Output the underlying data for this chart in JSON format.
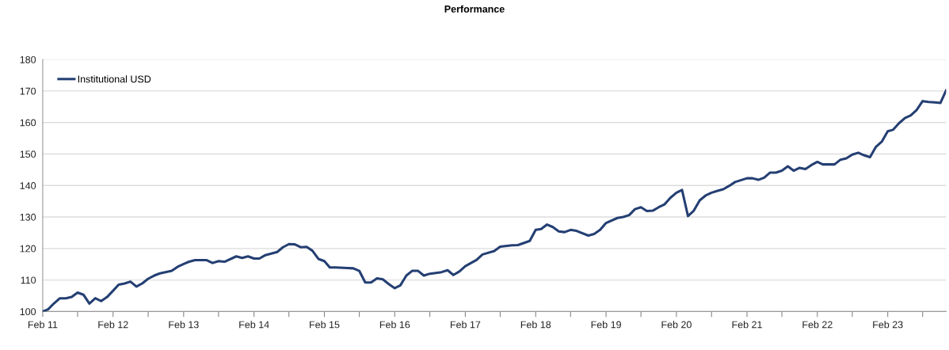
{
  "chart_data": {
    "type": "line",
    "title": "Performance",
    "x": [
      "2011-02",
      "2011-03",
      "2011-04",
      "2011-05",
      "2011-06",
      "2011-07",
      "2011-08",
      "2011-09",
      "2011-10",
      "2011-11",
      "2011-12",
      "2012-01",
      "2012-02",
      "2012-03",
      "2012-04",
      "2012-05",
      "2012-06",
      "2012-07",
      "2012-08",
      "2012-09",
      "2012-10",
      "2012-12",
      "2013-01",
      "2013-02",
      "2013-03",
      "2013-04",
      "2013-06",
      "2013-07",
      "2013-08",
      "2013-09",
      "2013-11",
      "2013-12",
      "2014-01",
      "2014-02",
      "2014-03",
      "2014-04",
      "2014-06",
      "2014-07",
      "2014-08",
      "2014-09",
      "2014-10",
      "2014-11",
      "2014-12",
      "2015-01",
      "2015-02",
      "2015-03",
      "2015-04",
      "2015-06",
      "2015-07",
      "2015-08",
      "2015-09",
      "2015-10",
      "2015-11",
      "2015-12",
      "2016-01",
      "2016-02",
      "2016-03",
      "2016-04",
      "2016-05",
      "2016-06",
      "2016-07",
      "2016-08",
      "2016-10",
      "2016-11",
      "2016-12",
      "2017-01",
      "2017-02",
      "2017-04",
      "2017-05",
      "2017-07",
      "2017-08",
      "2017-10",
      "2017-11",
      "2018-01",
      "2018-02",
      "2018-03",
      "2018-04",
      "2018-05",
      "2018-06",
      "2018-07",
      "2018-08",
      "2018-09",
      "2018-11",
      "2018-12",
      "2019-01",
      "2019-02",
      "2019-04",
      "2019-05",
      "2019-06",
      "2019-07",
      "2019-08",
      "2019-09",
      "2019-10",
      "2019-11",
      "2019-12",
      "2020-01",
      "2020-02",
      "2020-03",
      "2020-04",
      "2020-05",
      "2020-06",
      "2020-07",
      "2020-08",
      "2020-09",
      "2020-10",
      "2020-11",
      "2020-12",
      "2021-02",
      "2021-03",
      "2021-04",
      "2021-05",
      "2021-06",
      "2021-07",
      "2021-08",
      "2021-09",
      "2021-10",
      "2021-11",
      "2021-12",
      "2022-01",
      "2022-02",
      "2022-03",
      "2022-04",
      "2022-05",
      "2022-06",
      "2022-07",
      "2022-08",
      "2022-09",
      "2022-10",
      "2022-11",
      "2022-12",
      "2023-01",
      "2023-02",
      "2023-03",
      "2023-04",
      "2023-05",
      "2023-06",
      "2023-07",
      "2023-08",
      "2023-09",
      "2023-10",
      "2023-11",
      "2023-12"
    ],
    "series": [
      {
        "name": "Institutional USD",
        "color": "#243f73",
        "values": [
          100,
          100.7,
          102.6,
          104.2,
          104.2,
          104.6,
          106.0,
          105.3,
          102.5,
          104.2,
          103.3,
          104.6,
          106.6,
          108.5,
          108.9,
          109.5,
          107.9,
          108.9,
          110.4,
          111.4,
          112.1,
          112.9,
          114.2,
          115.1,
          115.8,
          116.3,
          116.3,
          115.4,
          116.0,
          115.8,
          117.5,
          117.0,
          117.5,
          116.8,
          116.8,
          117.9,
          118.9,
          120.4,
          121.4,
          121.3,
          120.4,
          120.5,
          119.3,
          116.7,
          116.0,
          114.0,
          114.0,
          113.8,
          113.7,
          112.9,
          109.2,
          109.2,
          110.5,
          110.2,
          108.7,
          107.4,
          108.3,
          111.4,
          112.9,
          112.9,
          111.4,
          112.0,
          112.5,
          113.1,
          111.6,
          112.7,
          114.4,
          116.4,
          118.1,
          119.2,
          120.6,
          121.0,
          121.1,
          122.4,
          125.9,
          126.2,
          127.6,
          126.8,
          125.4,
          125.2,
          125.9,
          125.6,
          124.1,
          124.6,
          125.9,
          128.1,
          129.7,
          130.0,
          130.6,
          132.5,
          133.1,
          131.9,
          132.0,
          133.1,
          134.0,
          136.1,
          137.7,
          138.6,
          130.3,
          132.0,
          135.3,
          136.8,
          137.7,
          138.3,
          138.8,
          139.9,
          141.1,
          142.3,
          142.3,
          141.8,
          142.5,
          144.1,
          144.1,
          144.7,
          146.1,
          144.7,
          145.6,
          145.2,
          146.5,
          147.5,
          146.7,
          146.7,
          146.7,
          148.2,
          148.6,
          149.8,
          150.4,
          149.6,
          149.0,
          152.2,
          153.9,
          157.2,
          157.7,
          159.8,
          161.4,
          162.3,
          164.0,
          166.8,
          166.5,
          166.4,
          166.2,
          170.2
        ]
      }
    ],
    "xlim": [
      "2011-02",
      "2023-12"
    ],
    "xticks": [
      {
        "value": "2011-02",
        "label": "Feb 11"
      },
      {
        "value": "2011-08",
        "label": null
      },
      {
        "value": "2012-02",
        "label": "Feb 12"
      },
      {
        "value": "2012-08",
        "label": null
      },
      {
        "value": "2013-02",
        "label": "Feb 13"
      },
      {
        "value": "2013-08",
        "label": null
      },
      {
        "value": "2014-02",
        "label": "Feb 14"
      },
      {
        "value": "2014-08",
        "label": null
      },
      {
        "value": "2015-02",
        "label": "Feb 15"
      },
      {
        "value": "2015-08",
        "label": null
      },
      {
        "value": "2016-02",
        "label": "Feb 16"
      },
      {
        "value": "2016-08",
        "label": null
      },
      {
        "value": "2017-02",
        "label": "Feb 17"
      },
      {
        "value": "2017-08",
        "label": null
      },
      {
        "value": "2018-02",
        "label": "Feb 18"
      },
      {
        "value": "2018-08",
        "label": null
      },
      {
        "value": "2019-02",
        "label": "Feb 19"
      },
      {
        "value": "2019-08",
        "label": null
      },
      {
        "value": "2020-02",
        "label": "Feb 20"
      },
      {
        "value": "2020-08",
        "label": null
      },
      {
        "value": "2021-02",
        "label": "Feb 21"
      },
      {
        "value": "2021-08",
        "label": null
      },
      {
        "value": "2022-02",
        "label": "Feb 22"
      },
      {
        "value": "2022-08",
        "label": null
      },
      {
        "value": "2023-02",
        "label": "Feb 23"
      },
      {
        "value": "2023-08",
        "label": null
      }
    ],
    "ylim": [
      100,
      180
    ],
    "yticks": [
      100,
      110,
      120,
      130,
      140,
      150,
      160,
      170,
      180
    ],
    "grid": "y",
    "legend": "top left",
    "marker": "none",
    "line_style": "solid"
  }
}
